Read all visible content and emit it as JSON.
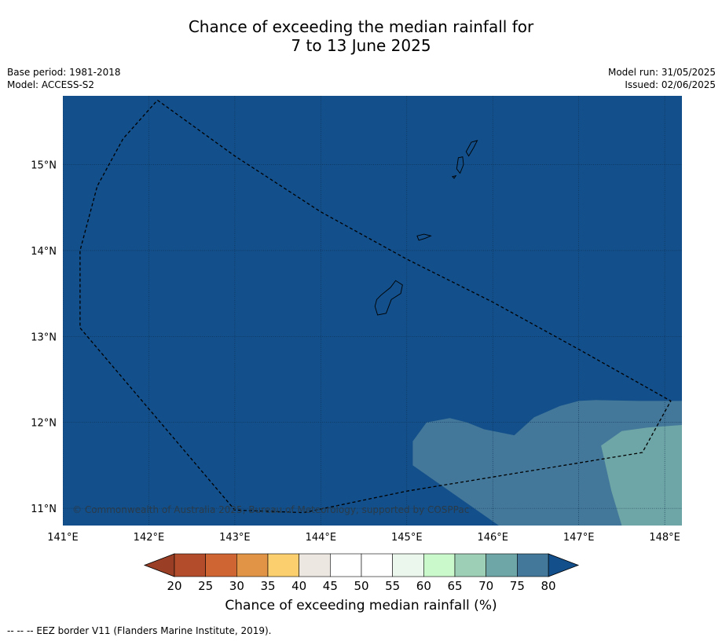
{
  "title_line1": "Chance of exceeding the median rainfall for",
  "title_line2": "7 to 13 June 2025",
  "meta": {
    "base_period": "Base period: 1981-2018",
    "model": "Model: ACCESS-S2",
    "model_run": "Model run: 31/05/2025",
    "issued": "Issued: 02/06/2025"
  },
  "copyright": "© Commonwealth of Australia 2025, Bureau of Meteorology, supported by COSPPac",
  "footnote": "--  --  -- EEZ border V11 (Flanders Marine Institute, 2019).",
  "colors": {
    "background_class": "#134f8a",
    "class_75_80": "#43789a",
    "class_70_75": "#6ea5a6"
  },
  "map": {
    "lon_range": [
      141.0,
      148.2
    ],
    "lat_range": [
      10.8,
      15.8
    ],
    "lon_ticks": [
      {
        "value": 141,
        "label": "141°E"
      },
      {
        "value": 142,
        "label": "142°E"
      },
      {
        "value": 143,
        "label": "143°E"
      },
      {
        "value": 144,
        "label": "144°E"
      },
      {
        "value": 145,
        "label": "145°E"
      },
      {
        "value": 146,
        "label": "146°E"
      },
      {
        "value": 147,
        "label": "147°E"
      },
      {
        "value": 148,
        "label": "148°E"
      }
    ],
    "lat_ticks": [
      {
        "value": 15,
        "label": "15°N"
      },
      {
        "value": 14,
        "label": "14°N"
      },
      {
        "value": 13,
        "label": "13°N"
      },
      {
        "value": 12,
        "label": "12°N"
      },
      {
        "value": 11,
        "label": "11°N"
      }
    ],
    "grid": true,
    "eez_border": [
      [
        142.1,
        15.75
      ],
      [
        143.0,
        15.1
      ],
      [
        144.0,
        14.45
      ],
      [
        145.0,
        13.9
      ],
      [
        146.0,
        13.4
      ],
      [
        147.0,
        12.85
      ],
      [
        148.07,
        12.25
      ],
      [
        147.74,
        11.65
      ],
      [
        145.0,
        11.2
      ],
      [
        143.8,
        10.95
      ],
      [
        143.0,
        10.98
      ],
      [
        141.2,
        13.1
      ],
      [
        141.2,
        14.0
      ],
      [
        141.4,
        14.75
      ],
      [
        141.7,
        15.3
      ],
      [
        142.1,
        15.75
      ]
    ],
    "contour_75_80": [
      [
        146.5,
        10.8
      ],
      [
        146.07,
        10.8
      ],
      [
        145.07,
        11.5
      ],
      [
        145.07,
        11.78
      ],
      [
        145.23,
        12.0
      ],
      [
        145.5,
        12.05
      ],
      [
        145.7,
        12.0
      ],
      [
        145.9,
        11.92
      ],
      [
        146.25,
        11.85
      ],
      [
        146.48,
        12.06
      ],
      [
        146.78,
        12.19
      ],
      [
        147.0,
        12.25
      ],
      [
        147.2,
        12.26
      ],
      [
        147.7,
        12.25
      ],
      [
        148.2,
        12.25
      ],
      [
        148.2,
        10.8
      ]
    ],
    "contour_70_75": [
      [
        147.5,
        10.8
      ],
      [
        147.38,
        11.2
      ],
      [
        147.26,
        11.73
      ],
      [
        147.5,
        11.9
      ],
      [
        147.8,
        11.94
      ],
      [
        148.2,
        11.97
      ],
      [
        148.2,
        10.8
      ]
    ],
    "islands": [
      {
        "name": "Guam",
        "coords": [
          [
            144.87,
            13.65
          ],
          [
            144.95,
            13.6
          ],
          [
            144.93,
            13.5
          ],
          [
            144.82,
            13.43
          ],
          [
            144.76,
            13.27
          ],
          [
            144.66,
            13.25
          ],
          [
            144.63,
            13.35
          ],
          [
            144.65,
            13.43
          ],
          [
            144.7,
            13.48
          ],
          [
            144.81,
            13.57
          ],
          [
            144.87,
            13.65
          ]
        ]
      },
      {
        "name": "Rota",
        "coords": [
          [
            145.12,
            14.17
          ],
          [
            145.2,
            14.19
          ],
          [
            145.28,
            14.17
          ],
          [
            145.21,
            14.14
          ],
          [
            145.14,
            14.12
          ],
          [
            145.12,
            14.17
          ]
        ]
      },
      {
        "name": "Tinian",
        "coords": [
          [
            145.6,
            15.08
          ],
          [
            145.65,
            15.09
          ],
          [
            145.66,
            15.0
          ],
          [
            145.62,
            14.9
          ],
          [
            145.58,
            14.95
          ],
          [
            145.6,
            15.08
          ]
        ]
      },
      {
        "name": "Saipan",
        "coords": [
          [
            145.75,
            15.26
          ],
          [
            145.82,
            15.28
          ],
          [
            145.78,
            15.2
          ],
          [
            145.72,
            15.1
          ],
          [
            145.69,
            15.15
          ],
          [
            145.75,
            15.26
          ]
        ]
      },
      {
        "name": "Aguijan",
        "coords": [
          [
            145.53,
            14.86
          ],
          [
            145.57,
            14.87
          ],
          [
            145.55,
            14.84
          ],
          [
            145.53,
            14.86
          ]
        ]
      }
    ]
  },
  "colorbar": {
    "title": "Chance of exceeding median rainfall (%)",
    "ticks": [
      "20",
      "25",
      "30",
      "35",
      "40",
      "45",
      "50",
      "55",
      "60",
      "65",
      "70",
      "75",
      "80"
    ],
    "under_color": "#9a3f26",
    "over_color": "#134f8a",
    "colors": [
      "#b34c2a",
      "#cf6532",
      "#e29446",
      "#fbcf6d",
      "#ede7e2",
      "#ffffff",
      "#ffffff",
      "#ebf7ec",
      "#caf9cb",
      "#9dcfb7",
      "#6ea5a6",
      "#43789a"
    ]
  }
}
